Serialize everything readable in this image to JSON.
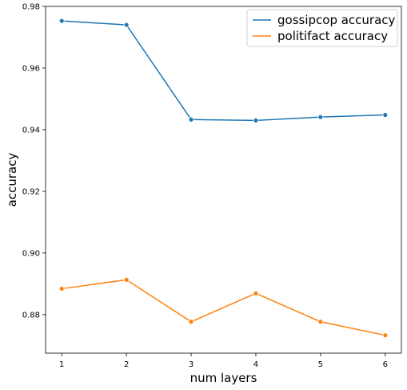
{
  "chart_data": {
    "type": "line",
    "xlabel": "num layers",
    "ylabel": "accuracy",
    "x": [
      1,
      2,
      3,
      4,
      5,
      6
    ],
    "xticks": [
      "1",
      "2",
      "3",
      "4",
      "5",
      "6"
    ],
    "yticks": [
      "0.88",
      "0.90",
      "0.92",
      "0.94",
      "0.96",
      "0.98"
    ],
    "xlim": [
      0.75,
      6.25
    ],
    "ylim": [
      0.8675,
      0.98
    ],
    "grid": false,
    "legend_position": "top-right",
    "series": [
      {
        "name": "gossipcop accuracy",
        "color": "#1f77b4",
        "values": [
          0.9753,
          0.974,
          0.9433,
          0.943,
          0.9441,
          0.9448
        ]
      },
      {
        "name": "politifact accuracy",
        "color": "#ff7f0e",
        "values": [
          0.8884,
          0.8913,
          0.8777,
          0.8869,
          0.8777,
          0.8733
        ]
      }
    ]
  }
}
